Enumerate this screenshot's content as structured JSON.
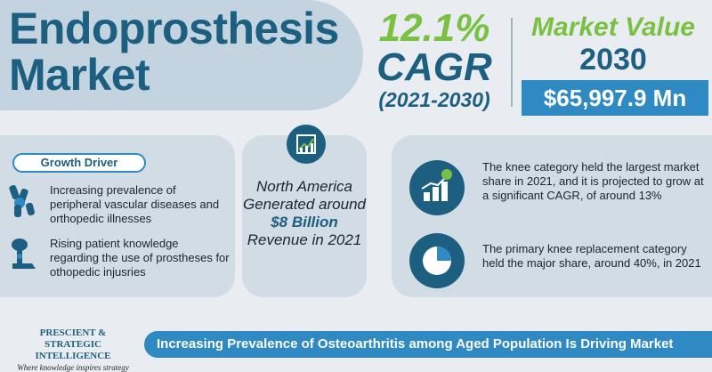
{
  "header": {
    "title_line1": "Endoprosthesis",
    "title_line2": "Market"
  },
  "cagr": {
    "value": "12.1%",
    "label": "CAGR",
    "period": "(2021-2030)"
  },
  "market_value": {
    "title": "Market Value",
    "year": "2030",
    "amount": "$65,997.9 Mn"
  },
  "growth_driver": {
    "badge": "Growth Driver",
    "items": [
      {
        "icon": "joint-icon",
        "text": "Increasing prevalence of peripheral vascular diseases and orthopedic illnesses"
      },
      {
        "icon": "prosthetic-leg-icon",
        "text": "Rising patient knowledge regarding the use of prostheses for othopedic injusries"
      }
    ]
  },
  "regional": {
    "icon": "growth-chart-icon",
    "line1": "North America Generated around",
    "amount": "$8 Billion",
    "line2": "Revenue in 2021"
  },
  "insights": [
    {
      "icon": "bar-chart-dollar-icon",
      "text": "The knee category held the largest market share in 2021, and it is projected to grow at a significant CAGR, of around 13%"
    },
    {
      "icon": "pie-chart-icon",
      "text": "The primary knee replacement category held the major share, around 40%, in 2021"
    }
  ],
  "footer": {
    "logo_line1": "PRESCIENT & STRATEGIC",
    "logo_line2": "INTELLIGENCE",
    "logo_tagline": "Where knowledge inspires strategy",
    "banner": "Increasing Prevalence of Osteoarthritis among Aged Population Is Driving Market"
  },
  "colors": {
    "primary": "#1c5f80",
    "accent_green": "#7ac143",
    "accent_blue": "#2f89c2",
    "background": "#e9edf1"
  }
}
